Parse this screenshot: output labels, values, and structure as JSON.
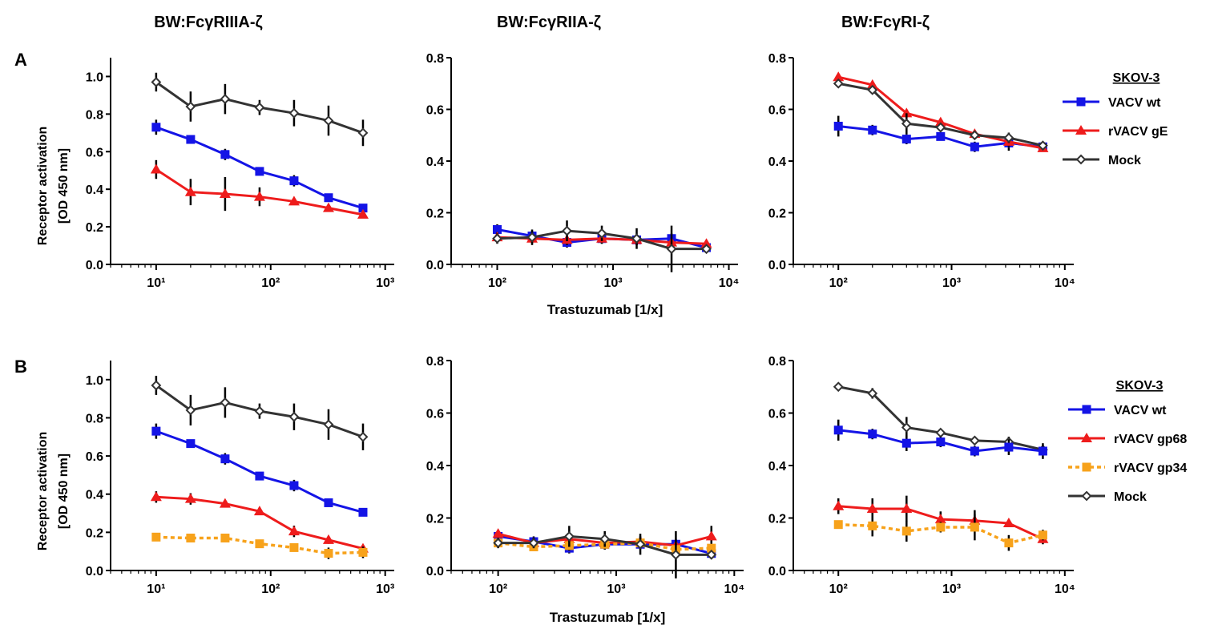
{
  "columns": [
    "BW:FcγRIIIA-ζ",
    "BW:FcγRIIA-ζ",
    "BW:FcγRI-ζ"
  ],
  "panel_labels": [
    "A",
    "B"
  ],
  "ylabel_line1": "Receptor activation",
  "ylabel_line2": "[OD 450 nm]",
  "xlabel": "Trastuzumab [1/x]",
  "colors": {
    "VACV wt": "#1414e6",
    "rVACV gE": "#ee1c1c",
    "rVACV gp68": "#ee1c1c",
    "rVACV gp34": "#f7a21b",
    "Mock": "#333333"
  },
  "legends": [
    {
      "title": "SKOV-3",
      "entries": [
        {
          "label": "VACV wt",
          "marker": "square",
          "dashed": false
        },
        {
          "label": "rVACV gE",
          "marker": "triangle",
          "dashed": false
        },
        {
          "label": "Mock",
          "marker": "diamond-open",
          "dashed": false
        }
      ]
    },
    {
      "title": "SKOV-3",
      "entries": [
        {
          "label": "VACV wt",
          "marker": "square",
          "dashed": false
        },
        {
          "label": "rVACV gp68",
          "marker": "triangle",
          "dashed": false
        },
        {
          "label": "rVACV gp34",
          "marker": "square",
          "dashed": true
        },
        {
          "label": "Mock",
          "marker": "diamond-open",
          "dashed": false
        }
      ]
    }
  ],
  "chart_data": [
    {
      "type": "line",
      "panel": "A",
      "title": "BW:FcγRIIIA-ζ",
      "xscale": "log",
      "xlim": [
        4,
        1200
      ],
      "xticks": [
        {
          "value": 10,
          "label": "10¹"
        },
        {
          "value": 100,
          "label": "10²"
        },
        {
          "value": 1000,
          "label": "10³"
        }
      ],
      "ylim": [
        0,
        1.1
      ],
      "yticks": [
        0.0,
        0.2,
        0.4,
        0.6,
        0.8,
        1.0
      ],
      "ytick_labels": [
        "0.0",
        "0.2",
        "0.4",
        "0.6",
        "0.8",
        "1.0"
      ],
      "x": [
        10,
        20,
        40,
        80,
        160,
        320,
        640
      ],
      "series": [
        {
          "name": "Mock",
          "values": [
            0.97,
            0.84,
            0.88,
            0.835,
            0.805,
            0.765,
            0.7
          ],
          "err": [
            0.05,
            0.08,
            0.08,
            0.04,
            0.07,
            0.08,
            0.07
          ]
        },
        {
          "name": "VACV wt",
          "values": [
            0.73,
            0.665,
            0.585,
            0.495,
            0.445,
            0.355,
            0.3
          ],
          "err": [
            0.04,
            0.02,
            0.03,
            0.02,
            0.03,
            0.02,
            0.01
          ]
        },
        {
          "name": "rVACV gE",
          "values": [
            0.505,
            0.385,
            0.375,
            0.36,
            0.335,
            0.3,
            0.265
          ],
          "err": [
            0.05,
            0.07,
            0.09,
            0.05,
            0.01,
            0.02,
            0.01
          ]
        }
      ]
    },
    {
      "type": "line",
      "panel": "A",
      "title": "BW:FcγRIIA-ζ",
      "xscale": "log",
      "xlim": [
        40,
        12000
      ],
      "xticks": [
        {
          "value": 100,
          "label": "10²"
        },
        {
          "value": 1000,
          "label": "10³"
        },
        {
          "value": 10000,
          "label": "10⁴"
        }
      ],
      "ylim": [
        0,
        0.8
      ],
      "yticks": [
        0.0,
        0.2,
        0.4,
        0.6,
        0.8
      ],
      "ytick_labels": [
        "0.0",
        "0.2",
        "0.4",
        "0.6",
        "0.8"
      ],
      "x": [
        100,
        200,
        400,
        800,
        1600,
        3200,
        6400
      ],
      "series": [
        {
          "name": "VACV wt",
          "values": [
            0.135,
            0.11,
            0.085,
            0.1,
            0.095,
            0.1,
            0.065
          ],
          "err": [
            0.02,
            0.02,
            0.02,
            0.02,
            0.02,
            0.02,
            0.01
          ]
        },
        {
          "name": "rVACV gE",
          "values": [
            0.105,
            0.1,
            0.095,
            0.1,
            0.095,
            0.085,
            0.08
          ],
          "err": [
            0.02,
            0.02,
            0.02,
            0.02,
            0.02,
            0.01,
            0.01
          ]
        },
        {
          "name": "Mock",
          "values": [
            0.1,
            0.105,
            0.13,
            0.12,
            0.1,
            0.06,
            0.06
          ],
          "err": [
            0.02,
            0.03,
            0.04,
            0.03,
            0.04,
            0.09,
            0.01
          ]
        }
      ]
    },
    {
      "type": "line",
      "panel": "A",
      "title": "BW:FcγRI-ζ",
      "xscale": "log",
      "xlim": [
        40,
        12000
      ],
      "xticks": [
        {
          "value": 100,
          "label": "10²"
        },
        {
          "value": 1000,
          "label": "10³"
        },
        {
          "value": 10000,
          "label": "10⁴"
        }
      ],
      "ylim": [
        0,
        0.8
      ],
      "yticks": [
        0.0,
        0.2,
        0.4,
        0.6,
        0.8
      ],
      "ytick_labels": [
        "0.0",
        "0.2",
        "0.4",
        "0.6",
        "0.8"
      ],
      "x": [
        100,
        200,
        400,
        800,
        1600,
        3200,
        6400
      ],
      "series": [
        {
          "name": "VACV wt",
          "values": [
            0.535,
            0.52,
            0.485,
            0.495,
            0.455,
            0.47,
            0.455
          ],
          "err": [
            0.04,
            0.02,
            0.02,
            0.01,
            0.02,
            0.03,
            0.01
          ]
        },
        {
          "name": "rVACV gE",
          "values": [
            0.725,
            0.695,
            0.585,
            0.55,
            0.505,
            0.475,
            0.45
          ],
          "err": [
            0.01,
            0.01,
            0.01,
            0.01,
            0.01,
            0.02,
            0.01
          ]
        },
        {
          "name": "Mock",
          "values": [
            0.7,
            0.675,
            0.545,
            0.53,
            0.5,
            0.49,
            0.46
          ],
          "err": [
            0.01,
            0.01,
            0.04,
            0.01,
            0.01,
            0.02,
            0.01
          ]
        }
      ]
    },
    {
      "type": "line",
      "panel": "B",
      "title": "BW:FcγRIIIA-ζ",
      "xscale": "log",
      "xlim": [
        4,
        1200
      ],
      "xticks": [
        {
          "value": 10,
          "label": "10¹"
        },
        {
          "value": 100,
          "label": "10²"
        },
        {
          "value": 1000,
          "label": "10³"
        }
      ],
      "ylim": [
        0,
        1.1
      ],
      "yticks": [
        0.0,
        0.2,
        0.4,
        0.6,
        0.8,
        1.0
      ],
      "ytick_labels": [
        "0.0",
        "0.2",
        "0.4",
        "0.6",
        "0.8",
        "1.0"
      ],
      "x": [
        10,
        20,
        40,
        80,
        160,
        320,
        640
      ],
      "series": [
        {
          "name": "Mock",
          "values": [
            0.97,
            0.84,
            0.88,
            0.835,
            0.805,
            0.765,
            0.7
          ],
          "err": [
            0.05,
            0.08,
            0.08,
            0.04,
            0.07,
            0.08,
            0.07
          ]
        },
        {
          "name": "VACV wt",
          "values": [
            0.73,
            0.665,
            0.585,
            0.495,
            0.445,
            0.355,
            0.305
          ],
          "err": [
            0.04,
            0.02,
            0.03,
            0.02,
            0.03,
            0.02,
            0.01
          ]
        },
        {
          "name": "rVACV gp68",
          "values": [
            0.385,
            0.375,
            0.35,
            0.31,
            0.205,
            0.16,
            0.115
          ],
          "err": [
            0.03,
            0.03,
            0.02,
            0.02,
            0.03,
            0.02,
            0.02
          ]
        },
        {
          "name": "rVACV gp34",
          "values": [
            0.175,
            0.17,
            0.17,
            0.14,
            0.12,
            0.09,
            0.095
          ],
          "err": [
            0.01,
            0.01,
            0.02,
            0.01,
            0.02,
            0.03,
            0.03
          ]
        }
      ]
    },
    {
      "type": "line",
      "panel": "B",
      "title": "BW:FcγRIIA-ζ",
      "xscale": "log",
      "xlim": [
        40,
        12000
      ],
      "xticks": [
        {
          "value": 100,
          "label": "10²"
        },
        {
          "value": 1000,
          "label": "10³"
        },
        {
          "value": 10000,
          "label": "10⁴"
        }
      ],
      "ylim": [
        0,
        0.8
      ],
      "yticks": [
        0.0,
        0.2,
        0.4,
        0.6,
        0.8
      ],
      "ytick_labels": [
        "0.0",
        "0.2",
        "0.4",
        "0.6",
        "0.8"
      ],
      "x": [
        100,
        200,
        400,
        800,
        1600,
        3200,
        6400
      ],
      "series": [
        {
          "name": "VACV wt",
          "values": [
            0.13,
            0.11,
            0.085,
            0.1,
            0.1,
            0.1,
            0.065
          ],
          "err": [
            0.02,
            0.02,
            0.02,
            0.02,
            0.02,
            0.02,
            0.01
          ]
        },
        {
          "name": "rVACV gp68",
          "values": [
            0.14,
            0.105,
            0.12,
            0.105,
            0.11,
            0.095,
            0.13
          ],
          "err": [
            0.01,
            0.02,
            0.02,
            0.02,
            0.02,
            0.02,
            0.04
          ]
        },
        {
          "name": "rVACV gp34",
          "values": [
            0.105,
            0.09,
            0.095,
            0.1,
            0.105,
            0.08,
            0.085
          ],
          "err": [
            0.01,
            0.01,
            0.02,
            0.02,
            0.02,
            0.02,
            0.01
          ]
        },
        {
          "name": "Mock",
          "values": [
            0.105,
            0.105,
            0.13,
            0.12,
            0.1,
            0.06,
            0.06
          ],
          "err": [
            0.02,
            0.02,
            0.04,
            0.03,
            0.04,
            0.09,
            0.01
          ]
        }
      ]
    },
    {
      "type": "line",
      "panel": "B",
      "title": "BW:FcγRI-ζ",
      "xscale": "log",
      "xlim": [
        40,
        12000
      ],
      "xticks": [
        {
          "value": 100,
          "label": "10²"
        },
        {
          "value": 1000,
          "label": "10³"
        },
        {
          "value": 10000,
          "label": "10⁴"
        }
      ],
      "ylim": [
        0,
        0.8
      ],
      "yticks": [
        0.0,
        0.2,
        0.4,
        0.6,
        0.8
      ],
      "ytick_labels": [
        "0.0",
        "0.2",
        "0.4",
        "0.6",
        "0.8"
      ],
      "x": [
        100,
        200,
        400,
        800,
        1600,
        3200,
        6400
      ],
      "series": [
        {
          "name": "Mock",
          "values": [
            0.7,
            0.675,
            0.545,
            0.525,
            0.495,
            0.49,
            0.46
          ],
          "err": [
            0.01,
            0.02,
            0.04,
            0.01,
            0.01,
            0.02,
            0.01
          ]
        },
        {
          "name": "VACV wt",
          "values": [
            0.535,
            0.52,
            0.485,
            0.49,
            0.455,
            0.47,
            0.455
          ],
          "err": [
            0.04,
            0.02,
            0.03,
            0.02,
            0.02,
            0.03,
            0.03
          ]
        },
        {
          "name": "rVACV gp68",
          "values": [
            0.245,
            0.235,
            0.235,
            0.195,
            0.19,
            0.18,
            0.12
          ],
          "err": [
            0.03,
            0.04,
            0.05,
            0.03,
            0.04,
            0.01,
            0.02
          ]
        },
        {
          "name": "rVACV gp34",
          "values": [
            0.175,
            0.17,
            0.15,
            0.165,
            0.165,
            0.105,
            0.135
          ],
          "err": [
            0.01,
            0.04,
            0.04,
            0.02,
            0.05,
            0.03,
            0.02
          ]
        }
      ]
    }
  ]
}
